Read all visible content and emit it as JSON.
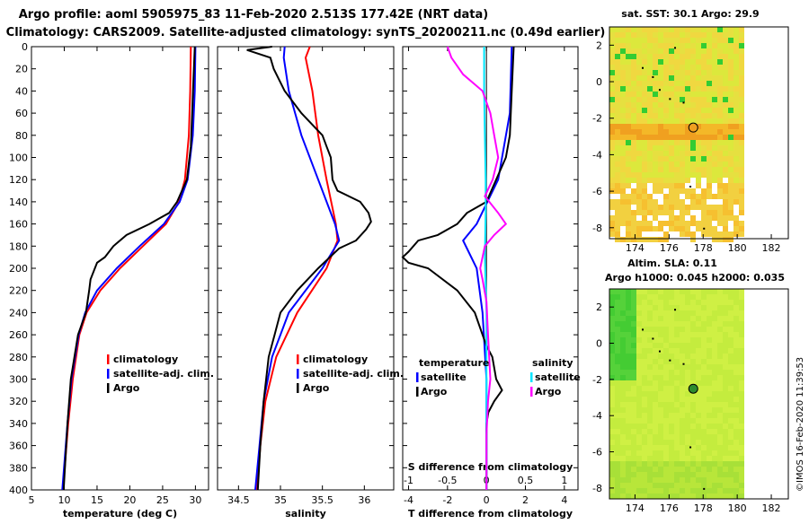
{
  "header": {
    "title1": "Argo profile: aoml 5905975_83 11-Feb-2020 2.513S 177.42E (NRT data)",
    "title2": "Climatology: CARS2009. Satellite-adjusted climatology: synTS_20200211.nc (0.49d earlier)"
  },
  "colors": {
    "climatology": "#ff0000",
    "satellite": "#0000ff",
    "argo": "#000000",
    "sal_diff": "#ff00ff",
    "sal_sat": "#00e5ff"
  },
  "chart_data": [
    {
      "type": "line",
      "panel": "temperature",
      "xlabel": "temperature (deg C)",
      "ylabel": "",
      "xlim": [
        5,
        32
      ],
      "ylim": [
        400,
        0
      ],
      "xticks": [
        5,
        10,
        15,
        20,
        25,
        30
      ],
      "yticks": [
        0,
        20,
        40,
        60,
        80,
        100,
        120,
        140,
        160,
        180,
        200,
        220,
        240,
        260,
        280,
        300,
        320,
        340,
        360,
        380,
        400
      ],
      "legend": [
        "climatology",
        "satellite-adj. clim.",
        "Argo"
      ],
      "series": [
        {
          "name": "climatology",
          "color": "#ff0000",
          "depth": [
            0,
            40,
            80,
            120,
            140,
            160,
            180,
            200,
            220,
            240,
            260,
            300,
            340,
            400
          ],
          "values": [
            29.3,
            29.2,
            29.0,
            28.4,
            27.5,
            25.5,
            22.0,
            18.5,
            15.5,
            13.4,
            12.3,
            11.3,
            10.6,
            9.8
          ]
        },
        {
          "name": "satellite-adj. clim.",
          "color": "#0000ff",
          "depth": [
            0,
            40,
            80,
            120,
            140,
            160,
            180,
            200,
            220,
            240,
            260,
            300,
            340,
            400
          ],
          "values": [
            30.0,
            29.9,
            29.6,
            28.8,
            27.6,
            25.2,
            21.5,
            18.0,
            15.0,
            13.2,
            12.2,
            11.1,
            10.5,
            9.7
          ]
        },
        {
          "name": "Argo",
          "color": "#000000",
          "depth": [
            0,
            30,
            60,
            90,
            120,
            140,
            150,
            155,
            160,
            170,
            180,
            190,
            195,
            210,
            220,
            240,
            260,
            300,
            340,
            400
          ],
          "values": [
            29.9,
            29.7,
            29.5,
            29.3,
            28.7,
            27.2,
            26.0,
            24.5,
            23.0,
            19.5,
            17.5,
            16.2,
            15.0,
            14.0,
            13.8,
            13.3,
            12.1,
            11.0,
            10.5,
            9.9
          ]
        }
      ]
    },
    {
      "type": "line",
      "panel": "salinity",
      "xlabel": "salinity",
      "xlim": [
        34.25,
        36.35
      ],
      "ylim": [
        400,
        0
      ],
      "xticks": [
        34.5,
        35,
        35.5,
        36
      ],
      "legend": [
        "climatology",
        "satellite-adj. clim.",
        "Argo"
      ],
      "series": [
        {
          "name": "climatology",
          "color": "#ff0000",
          "depth": [
            0,
            10,
            40,
            80,
            120,
            160,
            175,
            200,
            240,
            280,
            320,
            360,
            400
          ],
          "values": [
            35.35,
            35.3,
            35.38,
            35.45,
            35.55,
            35.66,
            35.68,
            35.55,
            35.2,
            34.95,
            34.82,
            34.76,
            34.72
          ]
        },
        {
          "name": "satellite-adj. clim.",
          "color": "#0000ff",
          "depth": [
            0,
            10,
            40,
            80,
            120,
            160,
            175,
            200,
            240,
            280,
            320,
            360,
            400
          ],
          "values": [
            35.05,
            35.04,
            35.1,
            35.25,
            35.45,
            35.65,
            35.7,
            35.5,
            35.1,
            34.9,
            34.8,
            34.75,
            34.7
          ]
        },
        {
          "name": "Argo",
          "color": "#000000",
          "depth": [
            0,
            3,
            10,
            20,
            40,
            60,
            80,
            90,
            100,
            120,
            130,
            140,
            150,
            158,
            165,
            175,
            182,
            200,
            220,
            240,
            260,
            280,
            320,
            360,
            400
          ],
          "values": [
            34.9,
            34.6,
            34.88,
            34.92,
            35.05,
            35.25,
            35.5,
            35.55,
            35.6,
            35.62,
            35.68,
            35.95,
            36.05,
            36.08,
            36.02,
            35.9,
            35.7,
            35.45,
            35.2,
            35.0,
            34.93,
            34.86,
            34.8,
            34.76,
            34.73
          ]
        }
      ]
    },
    {
      "type": "line",
      "panel": "difference",
      "xlabel": "T difference from climatology",
      "x2label": "S difference from climatology",
      "xlim": [
        -4.3,
        4.7
      ],
      "x2lim": [
        -1.075,
        1.175
      ],
      "ylim": [
        400,
        0
      ],
      "xticks": [
        -4,
        -2,
        0,
        2,
        4
      ],
      "x2ticks": [
        -1,
        -0.5,
        0,
        0.5,
        1
      ],
      "legend_temperature": [
        "temperature",
        "satellite",
        "Argo"
      ],
      "legend_salinity": [
        "salinity",
        "satellite",
        "Argo"
      ],
      "series": [
        {
          "name": "temperature satellite",
          "color": "#0000ff",
          "depth": [
            0,
            60,
            120,
            160,
            175,
            200,
            240,
            300,
            400
          ],
          "values": [
            1.3,
            1.2,
            0.6,
            -0.5,
            -1.2,
            -0.5,
            -0.2,
            0.0,
            0.0
          ]
        },
        {
          "name": "temperature Argo",
          "color": "#000000",
          "depth": [
            0,
            40,
            80,
            100,
            120,
            140,
            150,
            160,
            170,
            175,
            185,
            190,
            195,
            200,
            220,
            240,
            260,
            270,
            280,
            300,
            310,
            320,
            330,
            340,
            400
          ],
          "values": [
            1.4,
            1.3,
            1.2,
            1.0,
            0.5,
            0.0,
            -1.0,
            -1.5,
            -2.5,
            -3.5,
            -4.0,
            -4.3,
            -4.0,
            -3.0,
            -1.5,
            -0.6,
            -0.2,
            0.0,
            0.3,
            0.5,
            0.8,
            0.4,
            0.1,
            0.0,
            0.0
          ]
        },
        {
          "name": "salinity satellite",
          "color": "#00e5ff",
          "depth": [
            0,
            40,
            80,
            120,
            150,
            190,
            240,
            300,
            400
          ],
          "values": [
            -0.03,
            -0.03,
            -0.02,
            -0.01,
            -0.01,
            -0.02,
            0.0,
            0.0,
            0.0
          ]
        },
        {
          "name": "salinity Argo",
          "color": "#ff00ff",
          "depth": [
            0,
            10,
            25,
            40,
            60,
            80,
            100,
            120,
            135,
            150,
            160,
            170,
            180,
            200,
            210,
            230,
            260,
            300,
            320,
            350,
            400
          ],
          "values": [
            -0.5,
            -0.45,
            -0.3,
            -0.05,
            0.05,
            0.1,
            0.15,
            0.08,
            -0.02,
            0.15,
            0.25,
            0.1,
            -0.02,
            -0.08,
            -0.05,
            0.0,
            0.02,
            0.05,
            0.02,
            0.0,
            0.0
          ]
        }
      ]
    },
    {
      "type": "heatmap",
      "panel": "sst_map",
      "title": "sat. SST: 30.1 Argo: 29.9",
      "xticks": [
        174,
        176,
        178,
        180,
        182
      ],
      "yticks": [
        2,
        0,
        -2,
        -4,
        -6,
        -8
      ],
      "xlim": [
        172.5,
        183
      ],
      "ylim": [
        -8.6,
        3
      ],
      "argo_position": {
        "lon": 177.42,
        "lat": -2.513
      }
    },
    {
      "type": "heatmap",
      "panel": "sla_map",
      "title1": "Altim. SLA: 0.11",
      "title2": "Argo h1000: 0.045 h2000: 0.035",
      "xticks": [
        174,
        176,
        178,
        180,
        182
      ],
      "yticks": [
        2,
        0,
        -2,
        -4,
        -6,
        -8
      ],
      "xlim": [
        172.5,
        183
      ],
      "ylim": [
        -8.6,
        3
      ],
      "argo_position": {
        "lon": 177.42,
        "lat": -2.513
      }
    }
  ],
  "footer": {
    "credit": "©IMOS 16-Feb-2020 11:39:53"
  }
}
